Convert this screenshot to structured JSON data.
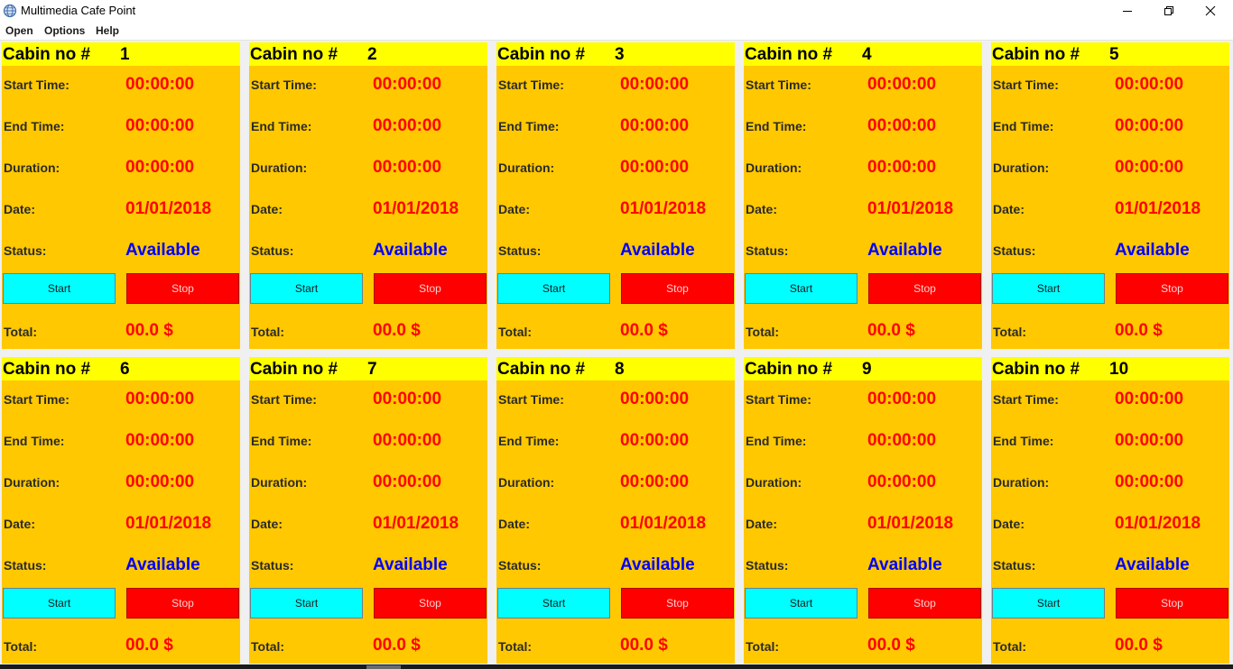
{
  "window": {
    "title": "Multimedia Cafe Point",
    "icon": "globe-icon",
    "controls": [
      "minimize-icon",
      "maximize-icon",
      "close-icon"
    ]
  },
  "menu": [
    "Open",
    "Options",
    "Help"
  ],
  "cabin_labels": {
    "title": "Cabin no #",
    "start_time": "Start Time:",
    "end_time": "End Time:",
    "duration": "Duration:",
    "date": "Date:",
    "status": "Status:",
    "total": "Total:",
    "start_button": "Start",
    "stop_button": "Stop"
  },
  "colors": {
    "header": "#ffff00",
    "panel": "#ffc800",
    "value": "#ff0000",
    "status": "#0000ff",
    "start_button": "#00ffff",
    "stop_button": "#ff0000"
  },
  "cabins": [
    {
      "number": "1",
      "start_time": "00:00:00",
      "end_time": "00:00:00",
      "duration": "00:00:00",
      "date": "01/01/2018",
      "status": "Available",
      "total": "00.0 $"
    },
    {
      "number": "2",
      "start_time": "00:00:00",
      "end_time": "00:00:00",
      "duration": "00:00:00",
      "date": "01/01/2018",
      "status": "Available",
      "total": "00.0 $"
    },
    {
      "number": "3",
      "start_time": "00:00:00",
      "end_time": "00:00:00",
      "duration": "00:00:00",
      "date": "01/01/2018",
      "status": "Available",
      "total": "00.0 $"
    },
    {
      "number": "4",
      "start_time": "00:00:00",
      "end_time": "00:00:00",
      "duration": "00:00:00",
      "date": "01/01/2018",
      "status": "Available",
      "total": "00.0 $"
    },
    {
      "number": "5",
      "start_time": "00:00:00",
      "end_time": "00:00:00",
      "duration": "00:00:00",
      "date": "01/01/2018",
      "status": "Available",
      "total": "00.0 $"
    },
    {
      "number": "6",
      "start_time": "00:00:00",
      "end_time": "00:00:00",
      "duration": "00:00:00",
      "date": "01/01/2018",
      "status": "Available",
      "total": "00.0 $"
    },
    {
      "number": "7",
      "start_time": "00:00:00",
      "end_time": "00:00:00",
      "duration": "00:00:00",
      "date": "01/01/2018",
      "status": "Available",
      "total": "00.0 $"
    },
    {
      "number": "8",
      "start_time": "00:00:00",
      "end_time": "00:00:00",
      "duration": "00:00:00",
      "date": "01/01/2018",
      "status": "Available",
      "total": "00.0 $"
    },
    {
      "number": "9",
      "start_time": "00:00:00",
      "end_time": "00:00:00",
      "duration": "00:00:00",
      "date": "01/01/2018",
      "status": "Available",
      "total": "00.0 $"
    },
    {
      "number": "10",
      "start_time": "00:00:00",
      "end_time": "00:00:00",
      "duration": "00:00:00",
      "date": "01/01/2018",
      "status": "Available",
      "total": "00.0 $"
    }
  ]
}
